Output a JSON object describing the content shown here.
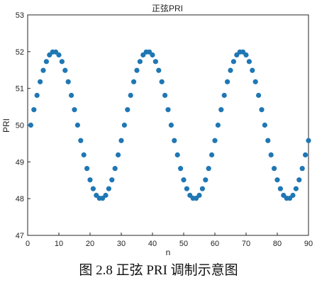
{
  "caption": "图 2.8 正弦 PRI 调制示意图",
  "chart_data": {
    "type": "scatter",
    "title": "正弦PRI",
    "xlabel": "n",
    "ylabel": "PRI",
    "xlim": [
      0,
      90
    ],
    "ylim": [
      47,
      53
    ],
    "xticks": [
      0,
      10,
      20,
      30,
      40,
      50,
      60,
      70,
      80,
      90
    ],
    "yticks": [
      47,
      48,
      49,
      50,
      51,
      52,
      53
    ],
    "grid": false,
    "marker_color": "#1f77b4",
    "series": [
      {
        "x": [
          1,
          2,
          3,
          4,
          5,
          6,
          7,
          8,
          9,
          10,
          11,
          12,
          13,
          14,
          15,
          16,
          17,
          18,
          19,
          20,
          21,
          22,
          23,
          24,
          25,
          26,
          27,
          28,
          29,
          30,
          31,
          32,
          33,
          34,
          35,
          36,
          37,
          38,
          39,
          40,
          41,
          42,
          43,
          44,
          45,
          46,
          47,
          48,
          49,
          50,
          51,
          52,
          53,
          54,
          55,
          56,
          57,
          58,
          59,
          60,
          61,
          62,
          63,
          64,
          65,
          66,
          67,
          68,
          69,
          70,
          71,
          72,
          73,
          74,
          75,
          76,
          77,
          78,
          79,
          80,
          81,
          82,
          83,
          84,
          85,
          86,
          87,
          88,
          89,
          90
        ],
        "y": [
          50.0,
          50.42,
          50.81,
          51.18,
          51.49,
          51.73,
          51.91,
          51.99,
          51.99,
          51.91,
          51.73,
          51.49,
          51.18,
          50.81,
          50.42,
          50.0,
          49.58,
          49.19,
          48.82,
          48.51,
          48.27,
          48.09,
          48.01,
          48.01,
          48.09,
          48.27,
          48.51,
          48.82,
          49.19,
          49.58,
          50.0,
          50.42,
          50.81,
          51.18,
          51.49,
          51.73,
          51.91,
          51.99,
          51.99,
          51.91,
          51.73,
          51.49,
          51.18,
          50.81,
          50.42,
          50.0,
          49.58,
          49.19,
          48.82,
          48.51,
          48.27,
          48.09,
          48.01,
          48.01,
          48.09,
          48.27,
          48.51,
          48.82,
          49.19,
          49.58,
          50.0,
          50.42,
          50.81,
          51.18,
          51.49,
          51.73,
          51.91,
          51.99,
          51.99,
          51.91,
          51.73,
          51.49,
          51.18,
          50.81,
          50.42,
          50.0,
          49.58,
          49.19,
          48.82,
          48.51,
          48.27,
          48.09,
          48.01,
          48.01,
          48.09,
          48.27,
          48.51,
          48.82,
          49.19,
          49.58
        ]
      }
    ]
  }
}
